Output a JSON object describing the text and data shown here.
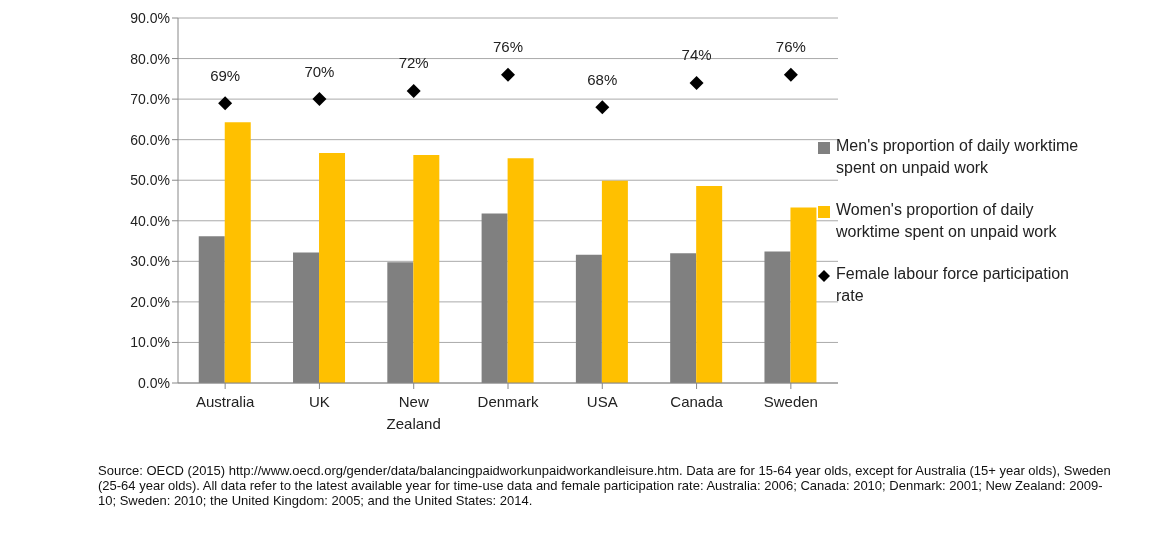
{
  "chart_data": {
    "type": "bar",
    "categories": [
      "Australia",
      "UK",
      "New Zealand",
      "Denmark",
      "USA",
      "Canada",
      "Sweden"
    ],
    "series": [
      {
        "name": "Men's proportion of daily worktime spent on unpaid work",
        "color": "#808080",
        "values": [
          36.2,
          32.2,
          29.8,
          41.8,
          31.6,
          32.0,
          32.4
        ]
      },
      {
        "name": "Women's proportion of daily worktime spent on unpaid work",
        "color": "#ffc000",
        "values": [
          64.3,
          56.7,
          56.2,
          55.4,
          49.9,
          48.6,
          43.3
        ]
      },
      {
        "name": "Female labour force participation rate",
        "type": "scatter",
        "color": "#000000",
        "x": [
          "Australia",
          "UK",
          "New Zealand",
          "Denmark",
          "USA",
          "Canada",
          "Sweden"
        ],
        "values": [
          69,
          70,
          72,
          76,
          68,
          74,
          76
        ],
        "value_labels": [
          "69%",
          "70%",
          "72%",
          "76%",
          "68%",
          "74%",
          "76%"
        ],
        "marker": "diamond"
      }
    ],
    "ylim": [
      0,
      90
    ],
    "yticks": [
      {
        "value": 0,
        "label": "0.0%"
      },
      {
        "value": 10,
        "label": "10.0%"
      },
      {
        "value": 20,
        "label": "20.0%"
      },
      {
        "value": 30,
        "label": "30.0%"
      },
      {
        "value": 40,
        "label": "40.0%"
      },
      {
        "value": 50,
        "label": "50.0%"
      },
      {
        "value": 60,
        "label": "60.0%"
      },
      {
        "value": 70,
        "label": "70.0%"
      },
      {
        "value": 80,
        "label": "80.0%"
      },
      {
        "value": 90,
        "label": "90.0%"
      }
    ],
    "grid": "y",
    "legend": "right",
    "annotations": [
      "Source: OECD (2015) http://www.oecd.org/gender/data/balancingpaidworkunpaidworkandleisure.htm. Data are for 15-64 year olds, except for Australia (15+ year olds), Sweden (25-64 year olds). All data refer to the latest available year for time-use data and female participation rate: Australia: 2006; Canada: 2010; Denmark: 2001; New Zealand: 2009-10; Sweden: 2010; the United Kingdom: 2005; and the United States: 2014."
    ]
  }
}
